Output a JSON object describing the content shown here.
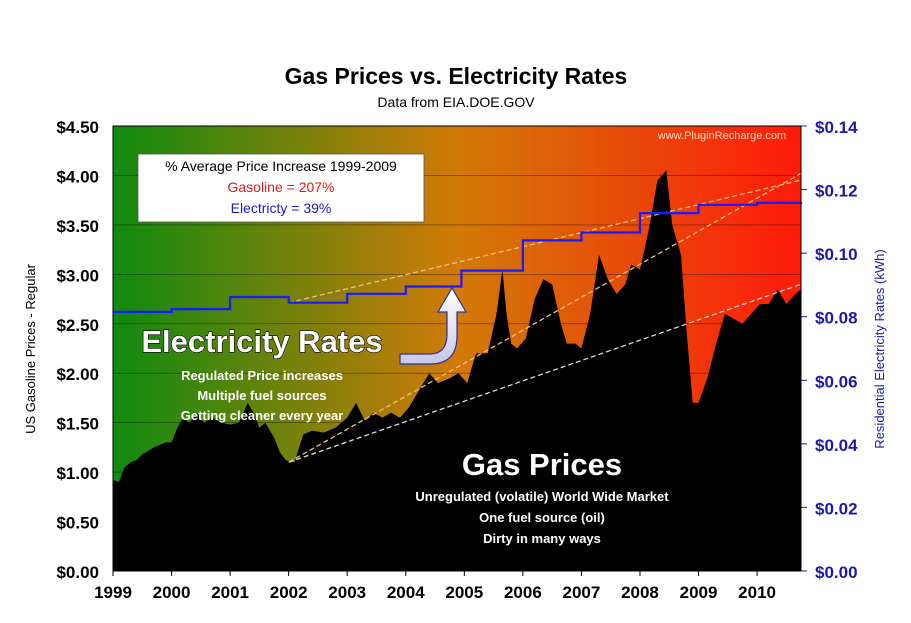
{
  "chart_data": {
    "type": "area-line",
    "title": "Gas Prices vs. Electricity Rates",
    "subtitle": "Data from EIA.DOE.GOV",
    "watermark": "www.PluginRecharge.com",
    "x_ticks": [
      "1999",
      "2000",
      "2001",
      "2002",
      "2003",
      "2004",
      "2005",
      "2006",
      "2007",
      "2008",
      "2009",
      "2010"
    ],
    "xlim": [
      1999,
      2010.75
    ],
    "left_axis": {
      "label": "US Gasoline Prices - Regular",
      "ylim": [
        0,
        4.5
      ],
      "ticks": [
        "$0.00",
        "$0.50",
        "$1.00",
        "$1.50",
        "$2.00",
        "$2.50",
        "$3.00",
        "$3.50",
        "$4.00",
        "$4.50"
      ],
      "tick_values": [
        0,
        0.5,
        1,
        1.5,
        2,
        2.5,
        3,
        3.5,
        4,
        4.5
      ]
    },
    "right_axis": {
      "label": "Residential Electricity Rates (kWh)",
      "ylim": [
        0,
        0.14
      ],
      "ticks": [
        "$0.00",
        "$0.02",
        "$0.04",
        "$0.06",
        "$0.08",
        "$0.10",
        "$0.12",
        "$0.14"
      ],
      "tick_values": [
        0,
        0.02,
        0.04,
        0.06,
        0.08,
        0.1,
        0.12,
        0.14
      ]
    },
    "series": [
      {
        "name": "Gasoline (US regular, $/gal)",
        "axis": "left",
        "color": "#000000",
        "x": [
          1999.0,
          1999.1,
          1999.2,
          1999.3,
          1999.4,
          1999.5,
          1999.7,
          1999.9,
          2000.0,
          2000.1,
          2000.2,
          2000.3,
          2000.45,
          2000.55,
          2000.7,
          2000.85,
          2001.0,
          2001.15,
          2001.3,
          2001.4,
          2001.5,
          2001.6,
          2001.75,
          2001.85,
          2001.95,
          2002.1,
          2002.25,
          2002.4,
          2002.6,
          2002.8,
          2003.0,
          2003.15,
          2003.3,
          2003.45,
          2003.6,
          2003.75,
          2003.9,
          2004.05,
          2004.2,
          2004.4,
          2004.55,
          2004.75,
          2004.9,
          2005.05,
          2005.2,
          2005.4,
          2005.55,
          2005.65,
          2005.72,
          2005.8,
          2005.9,
          2006.05,
          2006.2,
          2006.35,
          2006.5,
          2006.65,
          2006.75,
          2006.9,
          2007.0,
          2007.15,
          2007.3,
          2007.45,
          2007.6,
          2007.75,
          2007.85,
          2008.0,
          2008.15,
          2008.3,
          2008.45,
          2008.55,
          2008.7,
          2008.8,
          2008.9,
          2009.0,
          2009.15,
          2009.3,
          2009.45,
          2009.6,
          2009.75,
          2009.9,
          2010.05,
          2010.2,
          2010.35,
          2010.5,
          2010.65,
          2010.75
        ],
        "values": [
          0.92,
          0.9,
          1.05,
          1.1,
          1.12,
          1.18,
          1.25,
          1.3,
          1.3,
          1.45,
          1.55,
          1.5,
          1.6,
          1.5,
          1.55,
          1.5,
          1.48,
          1.5,
          1.7,
          1.6,
          1.45,
          1.5,
          1.35,
          1.2,
          1.12,
          1.1,
          1.38,
          1.42,
          1.4,
          1.45,
          1.55,
          1.7,
          1.52,
          1.6,
          1.55,
          1.6,
          1.55,
          1.65,
          1.8,
          2.0,
          1.9,
          1.95,
          2.0,
          1.9,
          2.2,
          2.2,
          2.6,
          3.05,
          2.6,
          2.3,
          2.25,
          2.35,
          2.75,
          2.95,
          2.9,
          2.5,
          2.3,
          2.3,
          2.25,
          2.6,
          3.2,
          2.95,
          2.8,
          2.9,
          3.1,
          3.05,
          3.45,
          3.95,
          4.05,
          3.5,
          3.2,
          2.4,
          1.7,
          1.7,
          1.95,
          2.3,
          2.6,
          2.55,
          2.5,
          2.6,
          2.7,
          2.7,
          2.85,
          2.7,
          2.8,
          2.85
        ]
      },
      {
        "name": "Electricity (residential, $/kWh)",
        "axis": "right",
        "color": "#1a1aff",
        "x": [
          1999.0,
          2000.0,
          2001.0,
          2002.0,
          2003.0,
          2004.0,
          2004.95,
          2006.0,
          2007.0,
          2008.0,
          2009.0,
          2010.0,
          2010.75
        ],
        "values": [
          0.0815,
          0.0824,
          0.0862,
          0.0844,
          0.0872,
          0.0895,
          0.0945,
          0.104,
          0.1065,
          0.1126,
          0.1152,
          0.1158,
          0.116
        ]
      }
    ],
    "trendlines": [
      {
        "series": "Gasoline",
        "from": [
          2002.0,
          1.1
        ],
        "to": [
          2010.75,
          2.9
        ]
      },
      {
        "series": "Gasoline",
        "from": [
          2002.0,
          1.1
        ],
        "to": [
          2010.75,
          4.02
        ]
      },
      {
        "series": "Electricity",
        "from": [
          2002.0,
          0.0844
        ],
        "to": [
          2010.75,
          0.123
        ]
      }
    ],
    "legend_box": {
      "title": "% Average Price Increase 1999-2009",
      "gasoline": "Gasoline = 207%",
      "electricity": "Electricty = 39%"
    },
    "annotations": {
      "electricity_heading": "Electricity Rates",
      "electricity_lines": [
        "Regulated Price increases",
        "Multiple fuel sources",
        "Getting cleaner every year"
      ],
      "gas_heading": "Gas Prices",
      "gas_lines": [
        "Unregulated (volatile) World Wide Market",
        "One fuel source (oil)",
        "Dirty in many ways"
      ]
    },
    "colors": {
      "left_start": "#0f8a0f",
      "mid": "#d27a08",
      "right_end": "#ff1a0a",
      "electricity_axis": "#1a1aaa",
      "gasoline_label": "#e01a1a",
      "electricity_label": "#1a1acc"
    }
  }
}
